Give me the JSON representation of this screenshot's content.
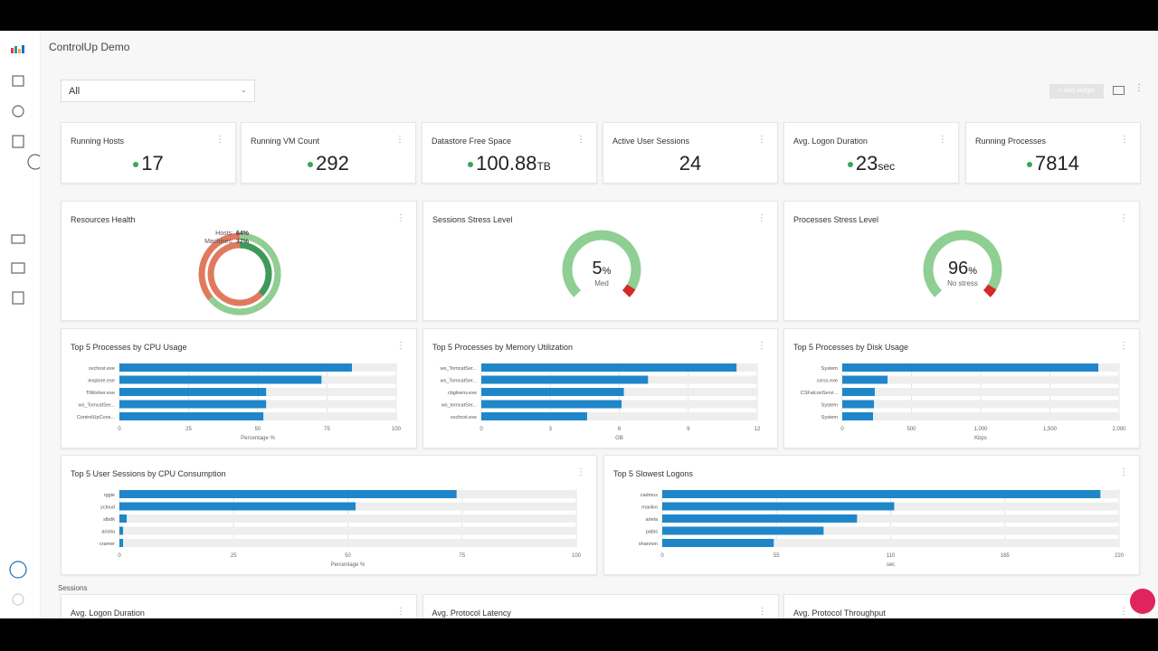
{
  "header": {
    "title": "ControlUp Demo"
  },
  "filter": "All",
  "add_widget": "+ Add widget",
  "kpis": [
    {
      "title": "Running Hosts",
      "value": 17,
      "unit": null
    },
    {
      "title": "Running VM Count",
      "value": 292,
      "unit": null
    },
    {
      "title": "Datastore Free Space",
      "value": 100.88,
      "unit": "TB"
    },
    {
      "title": "Active User Sessions",
      "value": 24,
      "unit": null
    },
    {
      "title": "Avg. Logon Duration",
      "value": 23,
      "unit": "sec"
    },
    {
      "title": "Running Processes",
      "value": 7814,
      "unit": null
    }
  ],
  "health": {
    "title": "Resources Health",
    "rings": [
      {
        "label": "Hosts:",
        "value": 64,
        "value_label": "64%"
      },
      {
        "label": "Machines:",
        "value": 37,
        "value_label": "37%"
      }
    ]
  },
  "gauges": [
    {
      "title": "Sessions Stress Level",
      "value": 5,
      "unit": "%",
      "status": "Med"
    },
    {
      "title": "Processes Stress Level",
      "value": 96,
      "unit": "%",
      "status": "No stress"
    }
  ],
  "bar_widgets": [
    {
      "title": "Top 5 Processes by CPU Usage",
      "categories": [
        "svchost.exe",
        "iexplore.exe",
        "TiWorker.exe",
        "ws_TomcatSer...",
        "ControlUpCons..."
      ],
      "values": [
        84,
        73,
        53,
        53,
        52
      ],
      "xlim": [
        0,
        100
      ],
      "xticks": [
        0,
        25,
        50,
        75,
        100
      ],
      "xlabel": "Percentage %"
    },
    {
      "title": "Top 5 Processes by Memory Utilization",
      "categories": [
        "ws_TomcatSer...",
        "ws_TomcatSer...",
        "cbgloenv.exe",
        "ws_tomcatSer...",
        "svchost.exe"
      ],
      "values": [
        11.1,
        7.25,
        6.2,
        6.1,
        4.6
      ],
      "xlim": [
        0,
        12
      ],
      "xticks": [
        0,
        3,
        6,
        9,
        12
      ],
      "xlabel": "GB"
    },
    {
      "title": "Top 5 Processes by Disk Usage",
      "categories": [
        "System",
        "csrss.exe",
        "CSFalconServi...",
        "System",
        "System"
      ],
      "values": [
        1850,
        327,
        235,
        229,
        222
      ],
      "xlim": [
        0,
        2000
      ],
      "xticks": [
        0,
        500,
        {
          "value": 1000,
          "label": "1,000"
        },
        {
          "value": 1500,
          "label": "1,500"
        },
        {
          "value": 2000,
          "label": "2,000"
        }
      ],
      "xlabel": "Kbps"
    },
    {
      "title": "Top 5 User Sessions by CPU Consumption",
      "categories": [
        "rggie",
        "ycloud",
        "slbdk",
        "aristia",
        "cramer"
      ],
      "values": [
        73.8,
        51.7,
        1.6,
        0.8,
        0.8
      ],
      "xlim": [
        0,
        100
      ],
      "xticks": [
        0,
        25,
        50,
        75,
        100
      ],
      "xlabel": "Percentage %"
    },
    {
      "title": "Top 5 Slowest Logons",
      "categories": [
        "cadmus",
        "maniko",
        "ariela",
        "pabis",
        "shannon"
      ],
      "values": [
        211,
        111.7,
        93.8,
        77.7,
        53.7
      ],
      "xlim": [
        0,
        220
      ],
      "xticks": [
        0,
        55,
        110,
        165,
        220
      ],
      "xlabel": "sec"
    }
  ],
  "sessions_label": "Sessions",
  "bottom": [
    "Avg. Logon Duration",
    "Avg. Protocol Latency",
    "Avg. Protocol Throughput"
  ]
}
